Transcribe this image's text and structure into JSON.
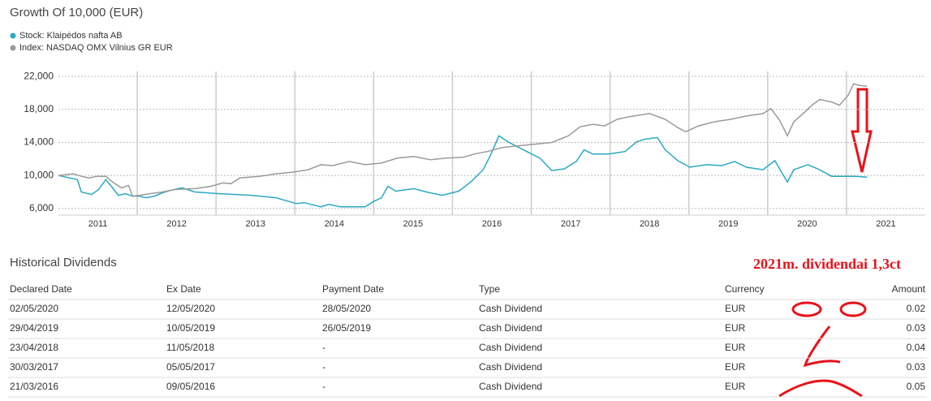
{
  "chart_data": {
    "type": "line",
    "title": "Growth Of 10,000 (EUR)",
    "series": [
      {
        "name": "Stock: Klaipėdos nafta AB",
        "color": "#2ba9c2",
        "x": [
          2011.0,
          2011.24,
          2011.29,
          2011.42,
          2011.51,
          2011.6,
          2011.67,
          2011.76,
          2011.85,
          2011.94,
          2012.03,
          2012.11,
          2012.22,
          2012.32,
          2012.42,
          2012.57,
          2012.73,
          2013.04,
          2013.25,
          2013.45,
          2013.76,
          2014.02,
          2014.12,
          2014.33,
          2014.43,
          2014.58,
          2014.89,
          2014.99,
          2015.1,
          2015.18,
          2015.28,
          2015.51,
          2015.67,
          2015.87,
          2016.08,
          2016.23,
          2016.39,
          2016.49,
          2016.59,
          2016.7,
          2016.9,
          2017.11,
          2017.26,
          2017.42,
          2017.57,
          2017.67,
          2017.78,
          2017.98,
          2018.19,
          2018.34,
          2018.45,
          2018.6,
          2018.7,
          2018.86,
          2019.01,
          2019.22,
          2019.42,
          2019.58,
          2019.73,
          2019.94,
          2020.09,
          2020.25,
          2020.33,
          2020.51,
          2020.66,
          2020.81,
          2020.97,
          2021.12,
          2021.26
        ],
        "values": [
          10000,
          9500,
          8000,
          7700,
          8300,
          9500,
          8700,
          7600,
          7800,
          7500,
          7500,
          7300,
          7500,
          7900,
          8200,
          8500,
          8000,
          7800,
          7700,
          7600,
          7300,
          6600,
          6700,
          6200,
          6500,
          6200,
          6200,
          6800,
          7300,
          8700,
          8100,
          8400,
          8000,
          7600,
          8100,
          9200,
          10700,
          12600,
          14800,
          14100,
          13100,
          12100,
          10600,
          10800,
          11700,
          13100,
          12600,
          12600,
          12900,
          14100,
          14400,
          14600,
          13100,
          11800,
          11000,
          11300,
          11200,
          11700,
          11000,
          10700,
          11800,
          9200,
          10700,
          11300,
          10700,
          9900,
          9900,
          9900,
          9800
        ]
      },
      {
        "name": "Index: NASDAQ OMX Vilnius GR EUR",
        "color": "#9a9a9a",
        "x": [
          2011.0,
          2011.19,
          2011.29,
          2011.39,
          2011.49,
          2011.6,
          2011.7,
          2011.8,
          2011.89,
          2011.94,
          2012.03,
          2012.16,
          2012.32,
          2012.47,
          2012.73,
          2012.94,
          2013.09,
          2013.19,
          2013.3,
          2013.55,
          2013.76,
          2013.97,
          2014.17,
          2014.33,
          2014.48,
          2014.69,
          2014.89,
          2015.1,
          2015.3,
          2015.51,
          2015.72,
          2015.92,
          2016.13,
          2016.28,
          2016.44,
          2016.64,
          2016.95,
          2017.26,
          2017.47,
          2017.62,
          2017.78,
          2017.93,
          2018.09,
          2018.24,
          2018.5,
          2018.7,
          2018.86,
          2018.96,
          2019.12,
          2019.32,
          2019.53,
          2019.73,
          2019.94,
          2020.04,
          2020.15,
          2020.25,
          2020.33,
          2020.45,
          2020.56,
          2020.66,
          2020.81,
          2020.91,
          2021.02,
          2021.09,
          2021.17,
          2021.26
        ],
        "values": [
          10000,
          10200,
          9900,
          9700,
          9900,
          9900,
          9100,
          8500,
          8800,
          7500,
          7600,
          7800,
          8000,
          8300,
          8400,
          8700,
          9100,
          9000,
          9700,
          9900,
          10200,
          10400,
          10700,
          11300,
          11200,
          11700,
          11300,
          11500,
          12100,
          12300,
          11900,
          12100,
          12200,
          12600,
          12900,
          13400,
          13700,
          14000,
          14800,
          15900,
          16200,
          16000,
          16800,
          17100,
          17500,
          16800,
          15800,
          15300,
          16000,
          16500,
          16800,
          17200,
          17500,
          18100,
          16700,
          14800,
          16500,
          17500,
          18500,
          19200,
          18900,
          18500,
          19700,
          21100,
          20900,
          20800
        ]
      }
    ],
    "xlim": [
      2011,
      2022
    ],
    "xticks": [
      {
        "value": 2011.5,
        "label": "2011"
      },
      {
        "value": 2012.5,
        "label": "2012"
      },
      {
        "value": 2013.5,
        "label": "2013"
      },
      {
        "value": 2014.5,
        "label": "2014"
      },
      {
        "value": 2015.5,
        "label": "2015"
      },
      {
        "value": 2016.5,
        "label": "2016"
      },
      {
        "value": 2017.5,
        "label": "2017"
      },
      {
        "value": 2018.5,
        "label": "2018"
      },
      {
        "value": 2019.5,
        "label": "2019"
      },
      {
        "value": 2020.5,
        "label": "2020"
      },
      {
        "value": 2021.5,
        "label": "2021"
      }
    ],
    "xgrid": [
      2012,
      2013,
      2014,
      2015,
      2016,
      2017,
      2018,
      2019,
      2020,
      2021
    ],
    "ylim": [
      5200,
      22600
    ],
    "yticks": [
      {
        "value": 6000,
        "label": "6,000"
      },
      {
        "value": 10000,
        "label": "10,000"
      },
      {
        "value": 14000,
        "label": "14,000"
      },
      {
        "value": 18000,
        "label": "18,000"
      },
      {
        "value": 22000,
        "label": "22,000"
      }
    ],
    "grid": true
  },
  "dividends": {
    "title": "Historical Dividends",
    "columns": [
      "Declared Date",
      "Ex Date",
      "Payment Date",
      "Type",
      "Currency",
      "Amount"
    ],
    "rows": [
      [
        "02/05/2020",
        "12/05/2020",
        "28/05/2020",
        "Cash Dividend",
        "EUR",
        "0.02"
      ],
      [
        "29/04/2019",
        "10/05/2019",
        "26/05/2019",
        "Cash Dividend",
        "EUR",
        "0.03"
      ],
      [
        "23/04/2018",
        "11/05/2018",
        "-",
        "Cash Dividend",
        "EUR",
        "0.04"
      ],
      [
        "30/03/2017",
        "05/05/2017",
        "-",
        "Cash Dividend",
        "EUR",
        "0.03"
      ],
      [
        "21/03/2016",
        "09/05/2016",
        "-",
        "Cash Dividend",
        "EUR",
        "0.05"
      ]
    ]
  },
  "annotation": "2021m. dividendai 1,3ct"
}
